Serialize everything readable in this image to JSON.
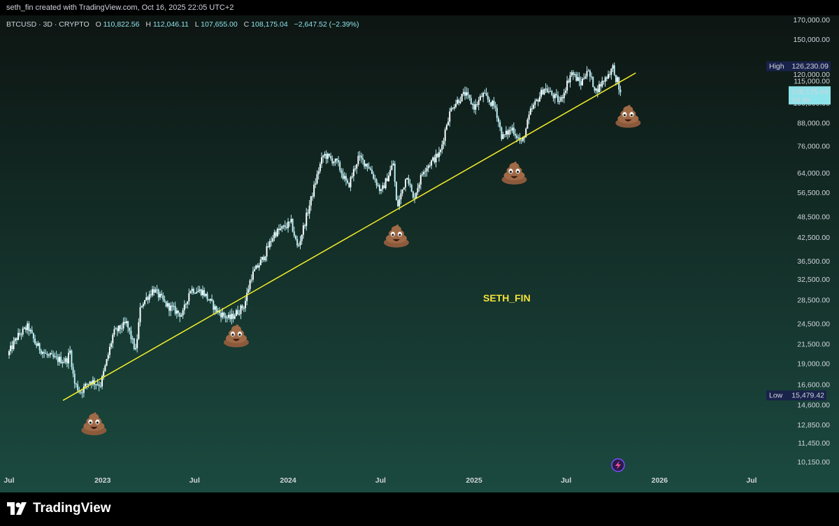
{
  "header": {
    "credit": "seth_fin created with TradingView.com, Oct 16, 2025 22:05 UTC+2"
  },
  "legend": {
    "symbol": "BTCUSD · 3D · CRYPTO",
    "o_label": "O",
    "open": "110,822.56",
    "h_label": "H",
    "high": "112,046.11",
    "l_label": "L",
    "low": "107,655.00",
    "c_label": "C",
    "close": "108,175.04",
    "change": "−2,647.52 (−2.39%)"
  },
  "watermark": "SETH_FIN",
  "badges": {
    "high_label": "High",
    "high_value": "126,230.09",
    "low_label": "Low",
    "low_value": "15,479.42",
    "last_price": "108,175.04",
    "countdown": "2d 4h"
  },
  "footer": {
    "brand": "TradingView"
  },
  "colors": {
    "bg_top": "#0d1512",
    "bg_bottom": "#1b4a40",
    "candle": "#bdeef4",
    "candle_dark": "#ffffff",
    "trendline": "#f5f02a",
    "watermark": "#f5e33a",
    "label_bg": "#19224a",
    "price_bg": "#8fe3ea"
  },
  "chart_data": {
    "type": "candlestick",
    "symbol": "BTCUSD",
    "interval": "3D",
    "y_scale": "log",
    "ylim": [
      9500,
      180000
    ],
    "xlim": [
      "2022-07-01",
      "2026-07-15"
    ],
    "y_ticks": [
      "10,150.00",
      "11,450.00",
      "12,850.00",
      "14,600.00",
      "16,600.00",
      "19,000.00",
      "21,500.00",
      "24,500.00",
      "28,500.00",
      "32,500.00",
      "36,500.00",
      "42,500.00",
      "48,500.00",
      "56,500.00",
      "64,000.00",
      "76,000.00",
      "88,000.00",
      "100,000.00",
      "115,000.00",
      "120,000.00",
      "150,000.00",
      "170,000.00"
    ],
    "x_ticks": [
      {
        "label": "Jul",
        "date": "2022-07-01"
      },
      {
        "label": "2023",
        "date": "2023-01-01"
      },
      {
        "label": "Jul",
        "date": "2023-07-01"
      },
      {
        "label": "2024",
        "date": "2024-01-01"
      },
      {
        "label": "Jul",
        "date": "2024-07-01"
      },
      {
        "label": "2025",
        "date": "2025-01-01"
      },
      {
        "label": "Jul",
        "date": "2025-07-01"
      },
      {
        "label": "2026",
        "date": "2026-01-01"
      },
      {
        "label": "Jul",
        "date": "2026-07-01"
      }
    ],
    "price_path": [
      [
        "2022-07-01",
        20000
      ],
      [
        "2022-07-20",
        22500
      ],
      [
        "2022-08-10",
        24000
      ],
      [
        "2022-08-25",
        21500
      ],
      [
        "2022-09-15",
        20000
      ],
      [
        "2022-10-05",
        19500
      ],
      [
        "2022-10-25",
        19300
      ],
      [
        "2022-11-01",
        20500
      ],
      [
        "2022-11-09",
        16800
      ],
      [
        "2022-11-21",
        15800
      ],
      [
        "2022-12-10",
        17000
      ],
      [
        "2022-12-31",
        16600
      ],
      [
        "2023-01-13",
        19500
      ],
      [
        "2023-01-25",
        23000
      ],
      [
        "2023-02-20",
        24500
      ],
      [
        "2023-03-10",
        20500
      ],
      [
        "2023-03-20",
        27500
      ],
      [
        "2023-04-14",
        30500
      ],
      [
        "2023-05-10",
        27500
      ],
      [
        "2023-06-10",
        25800
      ],
      [
        "2023-06-25",
        30500
      ],
      [
        "2023-07-20",
        30000
      ],
      [
        "2023-08-17",
        26500
      ],
      [
        "2023-09-11",
        25200
      ],
      [
        "2023-10-10",
        27500
      ],
      [
        "2023-10-23",
        33000
      ],
      [
        "2023-11-15",
        37000
      ],
      [
        "2023-12-08",
        43500
      ],
      [
        "2024-01-10",
        46500
      ],
      [
        "2024-01-23",
        39500
      ],
      [
        "2024-02-15",
        52000
      ],
      [
        "2024-03-05",
        66000
      ],
      [
        "2024-03-14",
        72000
      ],
      [
        "2024-04-10",
        68000
      ],
      [
        "2024-05-01",
        58500
      ],
      [
        "2024-05-21",
        70500
      ],
      [
        "2024-06-10",
        67000
      ],
      [
        "2024-07-05",
        56500
      ],
      [
        "2024-07-29",
        68000
      ],
      [
        "2024-08-05",
        51000
      ],
      [
        "2024-08-25",
        63500
      ],
      [
        "2024-09-06",
        54000
      ],
      [
        "2024-09-27",
        65500
      ],
      [
        "2024-10-29",
        72500
      ],
      [
        "2024-11-12",
        89000
      ],
      [
        "2024-11-22",
        98000
      ],
      [
        "2024-12-17",
        106000
      ],
      [
        "2025-01-05",
        97000
      ],
      [
        "2025-01-21",
        105500
      ],
      [
        "2025-02-15",
        97000
      ],
      [
        "2025-02-28",
        80000
      ],
      [
        "2025-03-20",
        85000
      ],
      [
        "2025-04-08",
        77000
      ],
      [
        "2025-04-25",
        94500
      ],
      [
        "2025-05-22",
        110000
      ],
      [
        "2025-06-22",
        100500
      ],
      [
        "2025-07-14",
        121500
      ],
      [
        "2025-08-02",
        113000
      ],
      [
        "2025-08-14",
        123500
      ],
      [
        "2025-09-01",
        108000
      ],
      [
        "2025-10-06",
        126230
      ],
      [
        "2025-10-10",
        112000
      ],
      [
        "2025-10-13",
        115000
      ],
      [
        "2025-10-16",
        108175
      ]
    ],
    "high": {
      "date": "2025-10-06",
      "value": 126230.09
    },
    "low": {
      "date": "2022-11-21",
      "value": 15479.42
    },
    "last_close": 108175.04,
    "trendline": {
      "start": {
        "date": "2022-10-15",
        "value": 15000
      },
      "end": {
        "date": "2025-11-15",
        "value": 121000
      }
    },
    "emoji_markers": [
      {
        "date": "2022-12-15",
        "value": 12900
      },
      {
        "date": "2023-09-21",
        "value": 22600
      },
      {
        "date": "2024-08-01",
        "value": 42700
      },
      {
        "date": "2025-03-21",
        "value": 63800
      },
      {
        "date": "2025-10-31",
        "value": 91600
      }
    ]
  }
}
